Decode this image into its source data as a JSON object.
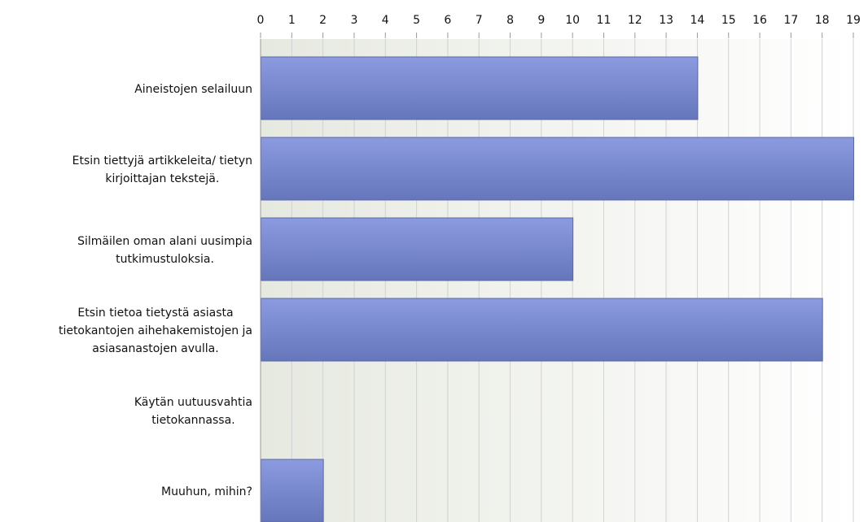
{
  "chart_data": {
    "type": "bar",
    "orientation": "horizontal",
    "categories": [
      "Aineistojen selailuun",
      "Etsin tiettyjä artikkeleita/ tietyn kirjoittajan tekstejä.",
      "Silmäilen oman alani uusimpia tutkimustuloksia.",
      "Etsin tietoa tietystä asiasta tietokantojen aihehakemistojen ja asiasanastojen avulla.",
      "Käytän uutuusvahtia tietokannassa.",
      "Muuhun, mihin?"
    ],
    "category_lines": [
      [
        "Aineistojen selailuun"
      ],
      [
        "Etsin tiettyjä artikkeleita/ tietyn",
        "kirjoittajan tekstejä."
      ],
      [
        "Silmäilen oman alani uusimpia",
        "tutkimustuloksia."
      ],
      [
        "Etsin tietoa tietystä asiasta",
        "tietokantojen aihehakemistojen ja",
        "asiasanastojen avulla."
      ],
      [
        "Käytän uutuusvahtia",
        "tietokannassa."
      ],
      [
        "Muuhun, mihin?"
      ]
    ],
    "values": [
      14,
      19,
      10,
      18,
      0,
      2
    ],
    "xlim": [
      0,
      19
    ],
    "x_ticks": [
      "0",
      "1",
      "2",
      "3",
      "4",
      "5",
      "6",
      "7",
      "8",
      "9",
      "10",
      "11",
      "12",
      "13",
      "14",
      "15",
      "16",
      "17",
      "18",
      "19"
    ],
    "axis_position": "top",
    "grid": true,
    "legend": "none",
    "colors": {
      "bar_top": "#8c9be0",
      "bar_bottom": "#6676bb",
      "bar_border": "#5a68a8",
      "plot_bg_left": "#e6e9e0",
      "plot_bg_right": "#ffffff",
      "grid": "#d2d2d2",
      "axis": "#999999"
    }
  }
}
